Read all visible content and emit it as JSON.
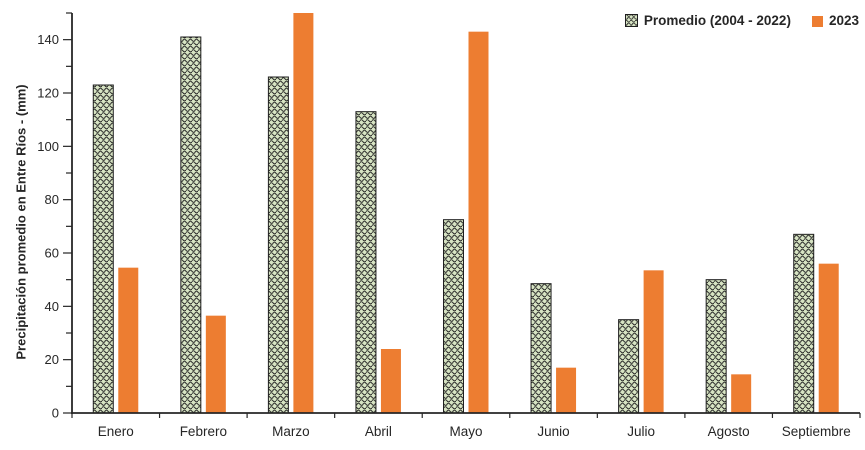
{
  "chart_data": {
    "type": "bar",
    "title": "",
    "categories": [
      "Enero",
      "Febrero",
      "Marzo",
      "Abril",
      "Mayo",
      "Junio",
      "Julio",
      "Agosto",
      "Septiembre"
    ],
    "series": [
      {
        "name": "Promedio (2004 - 2022)",
        "fill": "green-wave-pattern",
        "values": [
          123,
          141,
          126,
          113,
          72.5,
          48.5,
          35,
          50,
          67
        ]
      },
      {
        "name": "2023",
        "fill": "#ED7D31",
        "values": [
          54.5,
          36.5,
          150,
          24,
          143,
          17,
          53.5,
          14.5,
          56
        ]
      }
    ],
    "xlabel": "",
    "ylabel": "Precipitación promedio en Entre Ríos - (mm)",
    "ylim": [
      0,
      150
    ],
    "ytick_major": 20,
    "ytick_minor": 10,
    "ytick_labels": [
      "0",
      "20",
      "40",
      "60",
      "80",
      "100",
      "120",
      "140"
    ],
    "grid": false,
    "legend_position": "top-right"
  },
  "colors": {
    "orange": "#ED7D31",
    "pattern_bg": "#D7E4C3",
    "pattern_fg": "#272727",
    "bar_border": "#1f1f1f",
    "axis": "#262626",
    "text": "#262626"
  }
}
